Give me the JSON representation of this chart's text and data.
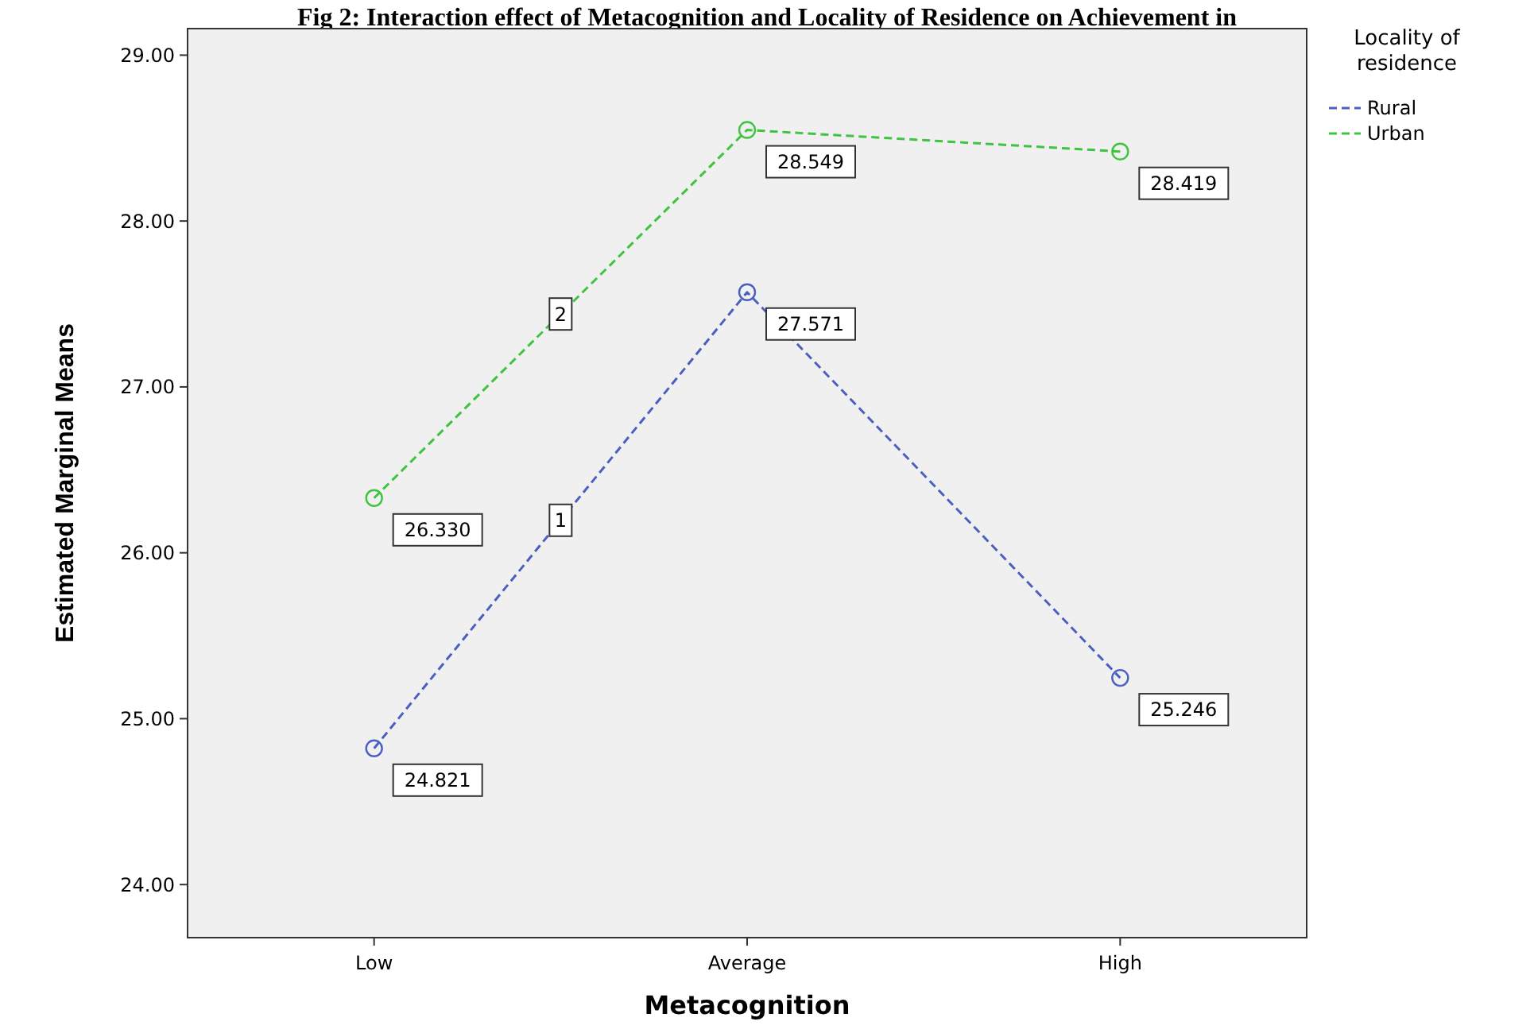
{
  "chart_data": {
    "type": "line",
    "title": "Fig 2: Interaction effect of Metacognition and Locality of Residence on Achievement in",
    "xlabel": "Metacognition",
    "ylabel": "Estimated Marginal Means",
    "legend_title": "Locality of residence",
    "categories": [
      "Low",
      "Average",
      "High"
    ],
    "series": [
      {
        "name": "Rural",
        "color": "#4a5fc1",
        "values": [
          24.821,
          27.571,
          25.246
        ],
        "value_labels": [
          "24.821",
          "27.571",
          "25.246"
        ]
      },
      {
        "name": "Urban",
        "color": "#3ec43e",
        "values": [
          26.33,
          28.549,
          28.419
        ],
        "value_labels": [
          "26.330",
          "28.549",
          "28.419"
        ]
      }
    ],
    "ylim": [
      23.68,
      29.16
    ],
    "yticks": [
      {
        "value": 24,
        "label": "24.00"
      },
      {
        "value": 25,
        "label": "25.00"
      },
      {
        "value": 26,
        "label": "26.00"
      },
      {
        "value": 27,
        "label": "27.00"
      },
      {
        "value": 28,
        "label": "28.00"
      },
      {
        "value": 29,
        "label": "29.00"
      }
    ],
    "annotations": [
      "1",
      "2"
    ],
    "marker": "circle",
    "line_style": "dashed",
    "grid": false,
    "legend": "top right"
  }
}
